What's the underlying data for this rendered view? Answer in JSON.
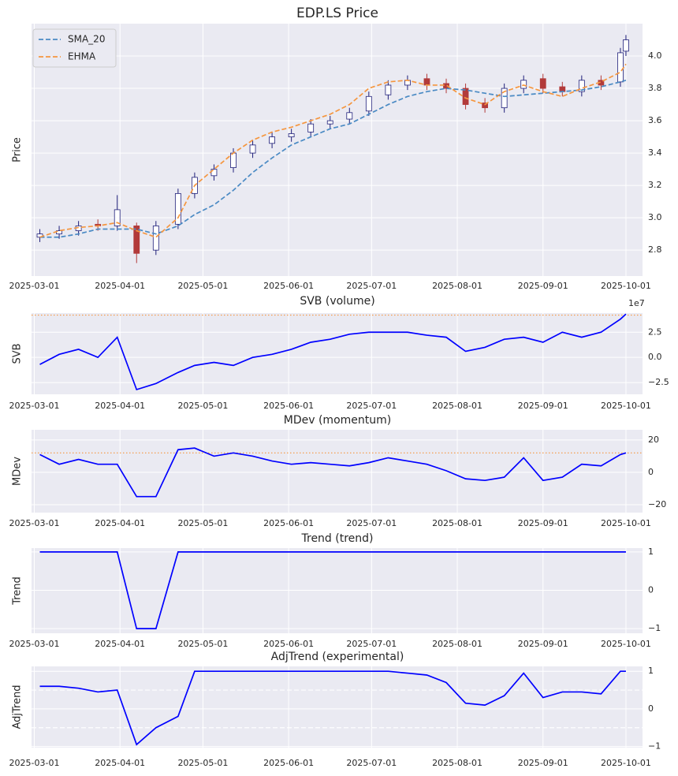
{
  "chart_data": [
    {
      "type": "candlestick",
      "title": "EDP.LS Price",
      "ylabel": "Price",
      "grid": true,
      "legend": "upper left",
      "xlim": [
        "2025-02-28",
        "2025-10-07"
      ],
      "xticks": [
        "2025-03-01",
        "2025-04-01",
        "2025-05-01",
        "2025-06-01",
        "2025-07-01",
        "2025-08-01",
        "2025-09-01",
        "2025-10-01"
      ],
      "ylim": [
        2.64,
        4.2
      ],
      "yticks": [
        2.8,
        {
          "value": 3,
          "label": "3.0"
        },
        3.2,
        3.4,
        3.6,
        3.8,
        {
          "value": 4,
          "label": "4.0"
        }
      ],
      "up_color": "#1f1f7a",
      "down_color": "#b23a3a",
      "x": [
        "2025-03-03",
        "2025-03-10",
        "2025-03-17",
        "2025-03-24",
        "2025-03-31",
        "2025-04-07",
        "2025-04-14",
        "2025-04-22",
        "2025-04-28",
        "2025-05-05",
        "2025-05-12",
        "2025-05-19",
        "2025-05-26",
        "2025-06-02",
        "2025-06-09",
        "2025-06-16",
        "2025-06-23",
        "2025-06-30",
        "2025-07-07",
        "2025-07-14",
        "2025-07-21",
        "2025-07-28",
        "2025-08-04",
        "2025-08-11",
        "2025-08-18",
        "2025-08-25",
        "2025-09-01",
        "2025-09-08",
        "2025-09-15",
        "2025-09-22",
        "2025-09-29",
        "2025-10-01"
      ],
      "open": [
        2.88,
        2.9,
        2.92,
        2.96,
        2.95,
        2.95,
        2.8,
        2.96,
        3.15,
        3.26,
        3.31,
        3.4,
        3.46,
        3.5,
        3.53,
        3.58,
        3.61,
        3.66,
        3.76,
        3.82,
        3.86,
        3.83,
        3.8,
        3.71,
        3.68,
        3.8,
        3.86,
        3.81,
        3.78,
        3.85,
        3.84,
        4.03
      ],
      "high": [
        2.93,
        2.95,
        2.98,
        2.99,
        3.14,
        2.97,
        2.98,
        3.18,
        3.28,
        3.33,
        3.43,
        3.48,
        3.53,
        3.55,
        3.61,
        3.63,
        3.68,
        3.78,
        3.85,
        3.88,
        3.89,
        3.86,
        3.83,
        3.74,
        3.83,
        3.88,
        3.89,
        3.84,
        3.88,
        3.88,
        4.05,
        4.13
      ],
      "low": [
        2.85,
        2.87,
        2.89,
        2.92,
        2.92,
        2.72,
        2.77,
        2.93,
        3.12,
        3.23,
        3.28,
        3.37,
        3.43,
        3.47,
        3.5,
        3.55,
        3.58,
        3.63,
        3.73,
        3.79,
        3.79,
        3.77,
        3.67,
        3.65,
        3.65,
        3.77,
        3.77,
        3.75,
        3.75,
        3.79,
        3.81,
        4.0
      ],
      "close": [
        2.9,
        2.92,
        2.95,
        2.95,
        3.05,
        2.78,
        2.95,
        3.15,
        3.25,
        3.3,
        3.4,
        3.45,
        3.5,
        3.52,
        3.58,
        3.6,
        3.65,
        3.75,
        3.82,
        3.85,
        3.82,
        3.8,
        3.7,
        3.68,
        3.8,
        3.85,
        3.8,
        3.78,
        3.85,
        3.82,
        4.02,
        4.1
      ],
      "series": [
        {
          "name": "SMA_20",
          "color": "#4a8ac4",
          "dash": "dashed",
          "values": [
            2.88,
            2.88,
            2.9,
            2.93,
            2.93,
            2.93,
            2.9,
            2.95,
            3.02,
            3.08,
            3.17,
            3.28,
            3.37,
            3.45,
            3.5,
            3.55,
            3.58,
            3.64,
            3.7,
            3.75,
            3.78,
            3.8,
            3.79,
            3.77,
            3.75,
            3.76,
            3.77,
            3.78,
            3.79,
            3.81,
            3.84,
            3.85
          ]
        },
        {
          "name": "EHMA",
          "color": "#f5963f",
          "dash": "dashed",
          "values": [
            2.88,
            2.92,
            2.94,
            2.95,
            2.97,
            2.92,
            2.88,
            3.0,
            3.2,
            3.3,
            3.4,
            3.48,
            3.53,
            3.56,
            3.6,
            3.64,
            3.7,
            3.8,
            3.84,
            3.85,
            3.82,
            3.82,
            3.74,
            3.7,
            3.78,
            3.82,
            3.78,
            3.75,
            3.8,
            3.84,
            3.9,
            3.95
          ]
        }
      ]
    },
    {
      "type": "line",
      "title": "SVB (volume)",
      "ylabel": "SVB",
      "offset_text": "1e7",
      "grid": true,
      "color": "#0000ff",
      "xlim": [
        "2025-02-28",
        "2025-10-07"
      ],
      "xticks": [
        "2025-03-01",
        "2025-04-01",
        "2025-05-01",
        "2025-06-01",
        "2025-07-01",
        "2025-08-01",
        "2025-09-01",
        "2025-10-01"
      ],
      "ylim": [
        -36700000,
        44000000
      ],
      "yticks": [
        {
          "value": -25000000,
          "label": "−2.5"
        },
        {
          "value": 0,
          "label": "0.0"
        },
        {
          "value": 25000000,
          "label": "2.5"
        }
      ],
      "hlines": [
        {
          "value": 42000000,
          "color": "#f5963f",
          "dash": "dotted"
        }
      ],
      "x": [
        "2025-03-03",
        "2025-03-10",
        "2025-03-17",
        "2025-03-24",
        "2025-03-31",
        "2025-04-07",
        "2025-04-14",
        "2025-04-22",
        "2025-04-28",
        "2025-05-05",
        "2025-05-12",
        "2025-05-19",
        "2025-05-26",
        "2025-06-02",
        "2025-06-09",
        "2025-06-16",
        "2025-06-23",
        "2025-06-30",
        "2025-07-07",
        "2025-07-14",
        "2025-07-21",
        "2025-07-28",
        "2025-08-04",
        "2025-08-11",
        "2025-08-18",
        "2025-08-25",
        "2025-09-01",
        "2025-09-08",
        "2025-09-15",
        "2025-09-22",
        "2025-09-29",
        "2025-10-01"
      ],
      "values": [
        -7000000,
        3000000,
        8000000,
        0,
        20000000,
        -32000000,
        -26000000,
        -15000000,
        -8000000,
        -5000000,
        -8000000,
        0,
        3000000,
        8000000,
        15000000,
        18000000,
        23000000,
        25000000,
        25000000,
        25000000,
        22000000,
        20000000,
        6000000,
        10000000,
        18000000,
        20000000,
        15000000,
        25000000,
        20000000,
        25000000,
        38000000,
        43000000
      ]
    },
    {
      "type": "line",
      "title": "MDev (momentum)",
      "ylabel": "MDev",
      "grid": true,
      "color": "#0000ff",
      "xlim": [
        "2025-02-28",
        "2025-10-07"
      ],
      "xticks": [
        "2025-03-01",
        "2025-04-01",
        "2025-05-01",
        "2025-06-01",
        "2025-07-01",
        "2025-08-01",
        "2025-09-01",
        "2025-10-01"
      ],
      "ylim": [
        -24.9,
        26.3
      ],
      "yticks": [
        {
          "value": -20,
          "label": "−20"
        },
        0,
        20
      ],
      "hlines": [
        {
          "value": 12,
          "color": "#f5963f",
          "dash": "dotted"
        }
      ],
      "x": [
        "2025-03-03",
        "2025-03-10",
        "2025-03-17",
        "2025-03-24",
        "2025-03-31",
        "2025-04-07",
        "2025-04-14",
        "2025-04-22",
        "2025-04-28",
        "2025-05-05",
        "2025-05-12",
        "2025-05-19",
        "2025-05-26",
        "2025-06-02",
        "2025-06-09",
        "2025-06-16",
        "2025-06-23",
        "2025-06-30",
        "2025-07-07",
        "2025-07-14",
        "2025-07-21",
        "2025-07-28",
        "2025-08-04",
        "2025-08-11",
        "2025-08-18",
        "2025-08-25",
        "2025-09-01",
        "2025-09-08",
        "2025-09-15",
        "2025-09-22",
        "2025-09-29",
        "2025-10-01"
      ],
      "values": [
        11,
        5,
        8,
        5,
        5,
        -15,
        -15,
        14,
        15,
        10,
        12,
        10,
        7,
        5,
        6,
        5,
        4,
        6,
        9,
        7,
        5,
        1,
        -4,
        -5,
        -3,
        9,
        -5,
        -3,
        5,
        4,
        11,
        12
      ]
    },
    {
      "type": "line",
      "title": "Trend (trend)",
      "ylabel": "Trend",
      "grid": true,
      "color": "#0000ff",
      "xlim": [
        "2025-02-28",
        "2025-10-07"
      ],
      "xticks": [
        "2025-03-01",
        "2025-04-01",
        "2025-05-01",
        "2025-06-01",
        "2025-07-01",
        "2025-08-01",
        "2025-09-01",
        "2025-10-01"
      ],
      "ylim": [
        -1.12,
        1.1
      ],
      "yticks": [
        {
          "value": -1,
          "label": "−1"
        },
        0,
        1
      ],
      "x": [
        "2025-03-03",
        "2025-03-10",
        "2025-03-17",
        "2025-03-24",
        "2025-03-31",
        "2025-04-07",
        "2025-04-14",
        "2025-04-22",
        "2025-04-28",
        "2025-05-05",
        "2025-05-12",
        "2025-05-19",
        "2025-05-26",
        "2025-06-02",
        "2025-06-09",
        "2025-06-16",
        "2025-06-23",
        "2025-06-30",
        "2025-07-07",
        "2025-07-14",
        "2025-07-21",
        "2025-07-28",
        "2025-08-04",
        "2025-08-11",
        "2025-08-18",
        "2025-08-25",
        "2025-09-01",
        "2025-09-08",
        "2025-09-15",
        "2025-09-22",
        "2025-09-29",
        "2025-10-01"
      ],
      "values": [
        1,
        1,
        1,
        1,
        1,
        -1,
        -1,
        1,
        1,
        1,
        1,
        1,
        1,
        1,
        1,
        1,
        1,
        1,
        1,
        1,
        1,
        1,
        1,
        1,
        1,
        1,
        1,
        1,
        1,
        1,
        1,
        1
      ]
    },
    {
      "type": "line",
      "title": "AdjTrend (experimental)",
      "ylabel": "AdjTrend",
      "grid": true,
      "color": "#0000ff",
      "xlim": [
        "2025-02-28",
        "2025-10-07"
      ],
      "xticks": [
        "2025-03-01",
        "2025-04-01",
        "2025-05-01",
        "2025-06-01",
        "2025-07-01",
        "2025-08-01",
        "2025-09-01",
        "2025-10-01"
      ],
      "ylim": [
        -1.03,
        1.13
      ],
      "yticks": [
        {
          "value": -1,
          "label": "−1"
        },
        0,
        1
      ],
      "hlines": [
        {
          "value": 0.5,
          "color": "#ffffff",
          "dash": "dashed"
        },
        {
          "value": -0.5,
          "color": "#ffffff",
          "dash": "dashed"
        }
      ],
      "x": [
        "2025-03-03",
        "2025-03-10",
        "2025-03-17",
        "2025-03-24",
        "2025-03-31",
        "2025-04-07",
        "2025-04-14",
        "2025-04-22",
        "2025-04-28",
        "2025-05-05",
        "2025-05-12",
        "2025-05-19",
        "2025-05-26",
        "2025-06-02",
        "2025-06-09",
        "2025-06-16",
        "2025-06-23",
        "2025-06-30",
        "2025-07-07",
        "2025-07-14",
        "2025-07-21",
        "2025-07-28",
        "2025-08-04",
        "2025-08-11",
        "2025-08-18",
        "2025-08-25",
        "2025-09-01",
        "2025-09-08",
        "2025-09-15",
        "2025-09-22",
        "2025-09-29",
        "2025-10-01"
      ],
      "values": [
        0.6,
        0.6,
        0.55,
        0.45,
        0.5,
        -0.95,
        -0.5,
        -0.2,
        1,
        1,
        1,
        1,
        1,
        1,
        1,
        1,
        1,
        1,
        1,
        0.95,
        0.9,
        0.7,
        0.15,
        0.1,
        0.35,
        0.95,
        0.3,
        0.45,
        0.45,
        0.4,
        1,
        1
      ]
    }
  ]
}
